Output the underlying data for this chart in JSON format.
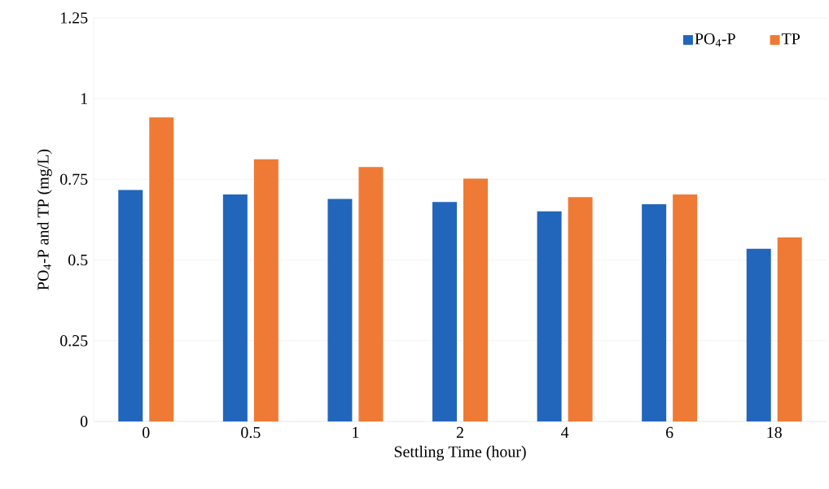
{
  "chart_data": {
    "type": "bar",
    "xlabel": "Settling Time (hour)",
    "ylabel": "PO$_{4}$-P and TP (mg/L)",
    "categories": [
      "0",
      "0.5",
      "1",
      "2",
      "4",
      "6",
      "18"
    ],
    "series": [
      {
        "name": "PO$_{4}$-P",
        "color": "#2266bb",
        "values": [
          0.717,
          0.703,
          0.689,
          0.68,
          0.651,
          0.673,
          0.535
        ]
      },
      {
        "name": "TP",
        "color": "#ef7a35",
        "values": [
          0.942,
          0.812,
          0.788,
          0.752,
          0.695,
          0.703,
          0.57
        ]
      }
    ],
    "ylim": [
      0,
      1.25
    ],
    "yticks": [
      0,
      0.25,
      0.5,
      0.75,
      1,
      1.25
    ],
    "grid": "y",
    "legend": "top right"
  }
}
